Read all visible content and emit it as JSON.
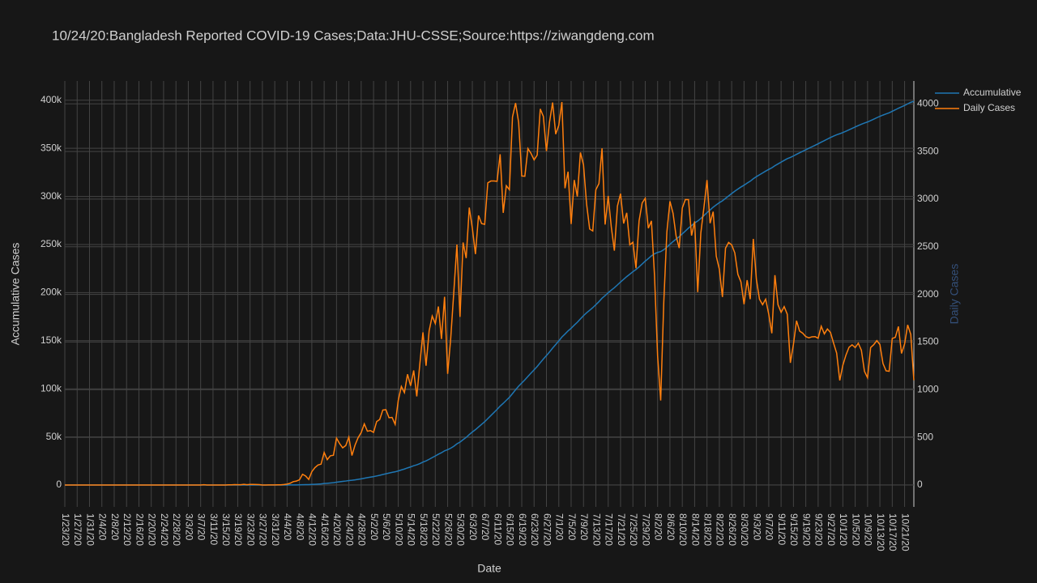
{
  "chart_data": {
    "type": "line",
    "title": "10/24/20:Bangladesh Reported COVID-19 Cases;Data:JHU-CSSE;Source:https://ziwangdeng.com",
    "xlabel": "Date",
    "ylabel": "Accumulative Cases",
    "y2label": "Daily Cases",
    "x": [
      "1/23/20",
      "1/24/20",
      "1/25/20",
      "1/26/20",
      "1/27/20",
      "1/28/20",
      "1/29/20",
      "1/30/20",
      "1/31/20",
      "2/1/20",
      "2/2/20",
      "2/3/20",
      "2/4/20",
      "2/5/20",
      "2/6/20",
      "2/7/20",
      "2/8/20",
      "2/9/20",
      "2/10/20",
      "2/11/20",
      "2/12/20",
      "2/13/20",
      "2/14/20",
      "2/15/20",
      "2/16/20",
      "2/17/20",
      "2/18/20",
      "2/19/20",
      "2/20/20",
      "2/21/20",
      "2/22/20",
      "2/23/20",
      "2/24/20",
      "2/25/20",
      "2/26/20",
      "2/27/20",
      "2/28/20",
      "2/29/20",
      "3/1/20",
      "3/2/20",
      "3/3/20",
      "3/4/20",
      "3/5/20",
      "3/6/20",
      "3/7/20",
      "3/8/20",
      "3/9/20",
      "3/10/20",
      "3/11/20",
      "3/12/20",
      "3/13/20",
      "3/14/20",
      "3/15/20",
      "3/16/20",
      "3/17/20",
      "3/18/20",
      "3/19/20",
      "3/20/20",
      "3/21/20",
      "3/22/20",
      "3/23/20",
      "3/24/20",
      "3/25/20",
      "3/26/20",
      "3/27/20",
      "3/28/20",
      "3/29/20",
      "3/30/20",
      "3/31/20",
      "4/1/20",
      "4/2/20",
      "4/3/20",
      "4/4/20",
      "4/5/20",
      "4/6/20",
      "4/7/20",
      "4/8/20",
      "4/9/20",
      "4/10/20",
      "4/11/20",
      "4/12/20",
      "4/13/20",
      "4/14/20",
      "4/15/20",
      "4/16/20",
      "4/17/20",
      "4/18/20",
      "4/19/20",
      "4/20/20",
      "4/21/20",
      "4/22/20",
      "4/23/20",
      "4/24/20",
      "4/25/20",
      "4/26/20",
      "4/27/20",
      "4/28/20",
      "4/29/20",
      "4/30/20",
      "5/1/20",
      "5/2/20",
      "5/3/20",
      "5/4/20",
      "5/5/20",
      "5/6/20",
      "5/7/20",
      "5/8/20",
      "5/9/20",
      "5/10/20",
      "5/11/20",
      "5/12/20",
      "5/13/20",
      "5/14/20",
      "5/15/20",
      "5/16/20",
      "5/17/20",
      "5/18/20",
      "5/19/20",
      "5/20/20",
      "5/21/20",
      "5/22/20",
      "5/23/20",
      "5/24/20",
      "5/25/20",
      "5/26/20",
      "5/27/20",
      "5/28/20",
      "5/29/20",
      "5/30/20",
      "5/31/20",
      "6/1/20",
      "6/2/20",
      "6/3/20",
      "6/4/20",
      "6/5/20",
      "6/6/20",
      "6/7/20",
      "6/8/20",
      "6/9/20",
      "6/10/20",
      "6/11/20",
      "6/12/20",
      "6/13/20",
      "6/14/20",
      "6/15/20",
      "6/16/20",
      "6/17/20",
      "6/18/20",
      "6/19/20",
      "6/20/20",
      "6/21/20",
      "6/22/20",
      "6/23/20",
      "6/24/20",
      "6/25/20",
      "6/26/20",
      "6/27/20",
      "6/28/20",
      "6/29/20",
      "6/30/20",
      "7/1/20",
      "7/2/20",
      "7/3/20",
      "7/4/20",
      "7/5/20",
      "7/6/20",
      "7/7/20",
      "7/8/20",
      "7/9/20",
      "7/10/20",
      "7/11/20",
      "7/12/20",
      "7/13/20",
      "7/14/20",
      "7/15/20",
      "7/16/20",
      "7/17/20",
      "7/18/20",
      "7/19/20",
      "7/20/20",
      "7/21/20",
      "7/22/20",
      "7/23/20",
      "7/24/20",
      "7/25/20",
      "7/26/20",
      "7/27/20",
      "7/28/20",
      "7/29/20",
      "7/30/20",
      "7/31/20",
      "8/1/20",
      "8/2/20",
      "8/3/20",
      "8/4/20",
      "8/5/20",
      "8/6/20",
      "8/7/20",
      "8/8/20",
      "8/9/20",
      "8/10/20",
      "8/11/20",
      "8/12/20",
      "8/13/20",
      "8/14/20",
      "8/15/20",
      "8/16/20",
      "8/17/20",
      "8/18/20",
      "8/19/20",
      "8/20/20",
      "8/21/20",
      "8/22/20",
      "8/23/20",
      "8/24/20",
      "8/25/20",
      "8/26/20",
      "8/27/20",
      "8/28/20",
      "8/29/20",
      "8/30/20",
      "8/31/20",
      "9/1/20",
      "9/2/20",
      "9/3/20",
      "9/4/20",
      "9/5/20",
      "9/6/20",
      "9/7/20",
      "9/8/20",
      "9/9/20",
      "9/10/20",
      "9/11/20",
      "9/12/20",
      "9/13/20",
      "9/14/20",
      "9/15/20",
      "9/16/20",
      "9/17/20",
      "9/18/20",
      "9/19/20",
      "9/20/20",
      "9/21/20",
      "9/22/20",
      "9/23/20",
      "9/24/20",
      "9/25/20",
      "9/26/20",
      "9/27/20",
      "9/28/20",
      "9/29/20",
      "9/30/20",
      "10/1/20",
      "10/2/20",
      "10/3/20",
      "10/4/20",
      "10/5/20",
      "10/6/20",
      "10/7/20",
      "10/8/20",
      "10/9/20",
      "10/10/20",
      "10/11/20",
      "10/12/20",
      "10/13/20",
      "10/14/20",
      "10/15/20",
      "10/16/20",
      "10/17/20",
      "10/18/20",
      "10/19/20",
      "10/20/20",
      "10/21/20",
      "10/22/20",
      "10/23/20",
      "10/24/20"
    ],
    "xticks": [
      "1/23/20",
      "1/27/20",
      "1/31/20",
      "2/4/20",
      "2/8/20",
      "2/12/20",
      "2/16/20",
      "2/20/20",
      "2/24/20",
      "2/28/20",
      "3/3/20",
      "3/7/20",
      "3/11/20",
      "3/15/20",
      "3/19/20",
      "3/23/20",
      "3/27/20",
      "3/31/20",
      "4/4/20",
      "4/8/20",
      "4/12/20",
      "4/16/20",
      "4/20/20",
      "4/24/20",
      "4/28/20",
      "5/2/20",
      "5/6/20",
      "5/10/20",
      "5/14/20",
      "5/18/20",
      "5/22/20",
      "5/26/20",
      "5/30/20",
      "6/3/20",
      "6/7/20",
      "6/11/20",
      "6/15/20",
      "6/19/20",
      "6/23/20",
      "6/27/20",
      "7/1/20",
      "7/5/20",
      "7/9/20",
      "7/13/20",
      "7/17/20",
      "7/21/20",
      "7/25/20",
      "7/29/20",
      "8/2/20",
      "8/6/20",
      "8/10/20",
      "8/14/20",
      "8/18/20",
      "8/22/20",
      "8/26/20",
      "8/30/20",
      "9/3/20",
      "9/7/20",
      "9/11/20",
      "9/15/20",
      "9/19/20",
      "9/23/20",
      "9/27/20",
      "10/1/20",
      "10/5/20",
      "10/9/20",
      "10/13/20",
      "10/17/20",
      "10/21/20"
    ],
    "ylim": [
      -22700,
      420000
    ],
    "yticks": [
      0,
      {
        "value": 50000,
        "label": "50k"
      },
      {
        "value": 100000,
        "label": "100k"
      },
      {
        "value": 150000,
        "label": "150k"
      },
      {
        "value": 200000,
        "label": "200k"
      },
      {
        "value": 250000,
        "label": "250k"
      },
      {
        "value": 300000,
        "label": "300k"
      },
      {
        "value": 350000,
        "label": "350k"
      },
      {
        "value": 400000,
        "label": "400k"
      }
    ],
    "y2lim": [
      -230,
      4240
    ],
    "y2ticks": [
      0,
      500,
      1000,
      1500,
      2000,
      2500,
      3000,
      3500,
      4000
    ],
    "grid": true,
    "legend": "right",
    "series": [
      {
        "name": "Accumulative",
        "color": "#1f77b4",
        "values": [
          0,
          0,
          0,
          0,
          0,
          0,
          0,
          0,
          0,
          0,
          0,
          0,
          0,
          0,
          0,
          0,
          0,
          0,
          0,
          0,
          0,
          0,
          0,
          0,
          0,
          0,
          0,
          0,
          0,
          0,
          0,
          0,
          0,
          0,
          0,
          0,
          0,
          0,
          0,
          0,
          0,
          0,
          0,
          0,
          0,
          3,
          3,
          3,
          3,
          3,
          3,
          3,
          3,
          5,
          7,
          11,
          14,
          17,
          24,
          27,
          33,
          39,
          44,
          48,
          48,
          48,
          49,
          50,
          51,
          53,
          55,
          60,
          69,
          87,
          122,
          163,
          217,
          329,
          423,
          481,
          620,
          802,
          1011,
          1230,
          1571,
          1837,
          2143,
          2455,
          2947,
          3381,
          3771,
          4185,
          4688,
          4997,
          5415,
          5912,
          6461,
          7102,
          7666,
          8237,
          8789,
          9454,
          10142,
          10928,
          11718,
          12424,
          13133,
          13769,
          14656,
          15690,
          16659,
          17821,
          18862,
          20064,
          20994,
          22267,
          23869,
          25120,
          26737,
          28510,
          30204,
          32077,
          33609,
          35584,
          36750,
          38291,
          40320,
          42843,
          44607,
          47152,
          49533,
          52444,
          55139,
          57562,
          60390,
          63133,
          65868,
          69039,
          72229,
          75419,
          78606,
          82077,
          84933,
          88074,
          91173,
          95035,
          99043,
          102846,
          106089,
          109329,
          112860,
          116340,
          119752,
          123214,
          127160,
          131028,
          134532,
          138341,
          142355,
          146037,
          149812,
          153831,
          156945,
          160233,
          162971,
          166172,
          169199,
          172688,
          176048,
          178997,
          181683,
          184349,
          187448,
          190611,
          194144,
          196877,
          199911,
          202620,
          205079,
          208007,
          211064,
          213808,
          216664,
          219184,
          221732,
          224007,
          226779,
          229739,
          232748,
          235443,
          238215,
          240414,
          241770,
          242657,
          244575,
          247229,
          250206,
          253057,
          255668,
          258155,
          261062,
          264058,
          267053,
          269670,
          272436,
          274460,
          277104,
          280015,
          283215,
          285962,
          288830,
          291231,
          293496,
          295469,
          297954,
          300499,
          303018,
          305454,
          307665,
          309796,
          311693,
          313843,
          315793,
          318375,
          320533,
          322483,
          324375,
          326325,
          328117,
          329709,
          331911,
          333803,
          335615,
          337487,
          339279,
          340561,
          342037,
          343761,
          345376,
          346969,
          348526,
          350070,
          351625,
          353182,
          354722,
          356388,
          357974,
          359611,
          361211,
          362699,
          364082,
          365179,
          366436,
          367798,
          369243,
          370714,
          372156,
          373644,
          375059,
          376252,
          377377,
          378819,
          380291,
          381806,
          383280,
          384555,
          385753,
          386946,
          388483,
          390033,
          391696,
          393076,
          394556,
          396236,
          397816,
          398916
        ]
      },
      {
        "name": "Daily Cases",
        "color": "#ff7f0e",
        "axis": "y2",
        "values": [
          0,
          0,
          0,
          0,
          0,
          0,
          0,
          0,
          0,
          0,
          0,
          0,
          0,
          0,
          0,
          0,
          0,
          0,
          0,
          0,
          0,
          0,
          0,
          0,
          0,
          0,
          0,
          0,
          0,
          0,
          0,
          0,
          0,
          0,
          0,
          0,
          0,
          0,
          0,
          0,
          0,
          0,
          0,
          0,
          0,
          3,
          0,
          0,
          0,
          0,
          0,
          0,
          0,
          2,
          2,
          4,
          3,
          3,
          7,
          3,
          6,
          6,
          5,
          4,
          0,
          0,
          1,
          1,
          1,
          2,
          2,
          5,
          9,
          18,
          35,
          41,
          54,
          112,
          94,
          58,
          139,
          182,
          209,
          219,
          341,
          266,
          306,
          312,
          492,
          434,
          390,
          414,
          503,
          309,
          418,
          497,
          549,
          641,
          564,
          571,
          552,
          665,
          688,
          786,
          790,
          706,
          709,
          636,
          887,
          1034,
          969,
          1162,
          1041,
          1202,
          930,
          1273,
          1602,
          1251,
          1617,
          1773,
          1694,
          1873,
          1532,
          1975,
          1166,
          1541,
          2029,
          2523,
          1764,
          2545,
          2381,
          2911,
          2695,
          2423,
          2828,
          2743,
          2735,
          3171,
          3190,
          3190,
          3187,
          3471,
          2856,
          3141,
          3099,
          3862,
          4008,
          3803,
          3243,
          3240,
          3531,
          3480,
          3412,
          3462,
          3946,
          3868,
          3504,
          3809,
          4014,
          3682,
          3775,
          4019,
          3114,
          3288,
          2738,
          3201,
          3027,
          3489,
          3360,
          2949,
          2686,
          2666,
          3099,
          3163,
          3533,
          2733,
          3034,
          2709,
          2459,
          2928,
          3057,
          2744,
          2856,
          2520,
          2548,
          2275,
          2772,
          2960,
          3009,
          2695,
          2772,
          2199,
          1356,
          887,
          1918,
          2654,
          2977,
          2851,
          2611,
          2487,
          2907,
          2996,
          2995,
          2617,
          2766,
          2024,
          2644,
          2911,
          3200,
          2747,
          2868,
          2401,
          2265,
          1973,
          2485,
          2545,
          2519,
          2436,
          2211,
          2131,
          1897,
          2150,
          1950,
          2582,
          2158,
          1950,
          1892,
          1950,
          1792,
          1592,
          2202,
          1892,
          1812,
          1872,
          1792,
          1282,
          1476,
          1724,
          1615,
          1593,
          1557,
          1544,
          1555,
          1557,
          1540,
          1666,
          1586,
          1637,
          1600,
          1488,
          1383,
          1097,
          1257,
          1362,
          1445,
          1471,
          1442,
          1488,
          1415,
          1193,
          1125,
          1442,
          1472,
          1515,
          1474,
          1275,
          1198,
          1193,
          1537,
          1550,
          1663,
          1380,
          1480,
          1680,
          1580,
          1100
        ]
      }
    ]
  }
}
